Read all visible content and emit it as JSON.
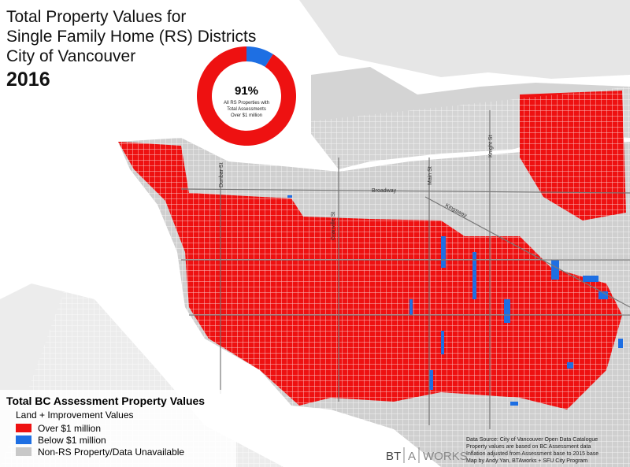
{
  "title": [
    "Total Property Values for",
    "Single Family Home (RS) Districts",
    "City of Vancouver"
  ],
  "year": "2016",
  "chart_data": {
    "type": "donut",
    "categories": [
      "Over $1 million",
      "Below $1 million"
    ],
    "values": [
      91,
      9
    ],
    "colors": [
      "#ee1111",
      "#1e6fe3"
    ],
    "center_label": "91%",
    "center_note": [
      "All RS Properties with",
      "Total Assessments",
      "Over $1 million"
    ]
  },
  "streets": [
    "Dunbar St",
    "Granville St",
    "Main St",
    "Knight St",
    "Broadway",
    "Kingsway"
  ],
  "legend": {
    "title": "Total BC Assessment Property Values",
    "subtitle": "Land + Improvement Values",
    "items": [
      {
        "label": "Over $1 million",
        "color": "#ee1111"
      },
      {
        "label": "Below $1 million",
        "color": "#1e6fe3"
      },
      {
        "label": "Non-RS Property/Data Unavailable",
        "color": "#c8c8c8"
      }
    ]
  },
  "source": [
    "Data Source: City of Vancouver Open Data Catalogue",
    "Property values are based on BC Assessment data",
    "Inflation adjusted from Assessment base to 2015 base",
    "Map by Andy Yan, BTAworks + SFU City Program"
  ],
  "logo": [
    "BT",
    "A",
    "WORKS"
  ]
}
